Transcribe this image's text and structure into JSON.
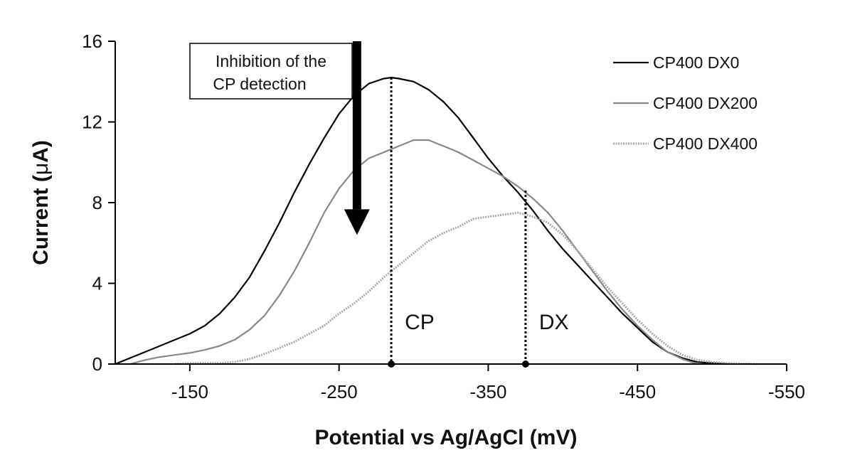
{
  "chart_data": {
    "type": "line",
    "title": "",
    "xlabel": "Potential vs Ag/AgCl (mV)",
    "ylabel_parts": [
      "Current (",
      "μ",
      "A)"
    ],
    "xlim": [
      -100,
      -550
    ],
    "ylim": [
      0,
      16
    ],
    "x_ticks": [
      -150,
      -250,
      -350,
      -450,
      -550
    ],
    "x_tick_labels": [
      "-150",
      "-250",
      "-350",
      "-450",
      "-550"
    ],
    "y_ticks": [
      0,
      4,
      8,
      12,
      16
    ],
    "y_tick_labels": [
      "0",
      "4",
      "8",
      "12",
      "16"
    ],
    "grid": false,
    "legend_position": "top-right",
    "series": [
      {
        "name": "CP400 DX0",
        "color": "#000000",
        "style": "solid",
        "x": [
          -100,
          -110,
          -120,
          -130,
          -140,
          -150,
          -160,
          -170,
          -180,
          -190,
          -200,
          -210,
          -220,
          -230,
          -240,
          -250,
          -260,
          -270,
          -280,
          -285,
          -290,
          -300,
          -310,
          -320,
          -330,
          -340,
          -350,
          -360,
          -370,
          -380,
          -390,
          -400,
          -410,
          -420,
          -430,
          -440,
          -450,
          -460,
          -470,
          -480,
          -490,
          -500,
          -510
        ],
        "y": [
          0.0,
          0.3,
          0.6,
          0.9,
          1.2,
          1.5,
          1.9,
          2.5,
          3.3,
          4.3,
          5.6,
          7.0,
          8.5,
          9.9,
          11.2,
          12.4,
          13.3,
          13.9,
          14.15,
          14.2,
          14.15,
          14.0,
          13.6,
          13.0,
          12.2,
          11.2,
          10.2,
          9.3,
          8.5,
          7.6,
          6.6,
          5.7,
          4.9,
          4.1,
          3.3,
          2.5,
          1.8,
          1.1,
          0.6,
          0.3,
          0.1,
          0.05,
          0.0
        ]
      },
      {
        "name": "CP400 DX200",
        "color": "#888888",
        "style": "solid",
        "x": [
          -110,
          -120,
          -130,
          -140,
          -150,
          -160,
          -170,
          -180,
          -190,
          -200,
          -210,
          -220,
          -230,
          -240,
          -250,
          -260,
          -270,
          -280,
          -290,
          -300,
          -310,
          -320,
          -330,
          -340,
          -350,
          -360,
          -370,
          -380,
          -390,
          -400,
          -410,
          -420,
          -430,
          -440,
          -450,
          -460,
          -470,
          -480,
          -490
        ],
        "y": [
          0.0,
          0.2,
          0.35,
          0.45,
          0.55,
          0.7,
          0.9,
          1.2,
          1.7,
          2.4,
          3.4,
          4.6,
          6.0,
          7.5,
          8.7,
          9.6,
          10.2,
          10.5,
          10.8,
          11.1,
          11.1,
          10.8,
          10.5,
          10.1,
          9.7,
          9.3,
          8.8,
          8.2,
          7.5,
          6.6,
          5.6,
          4.6,
          3.6,
          2.7,
          1.9,
          1.2,
          0.6,
          0.25,
          0.0
        ]
      },
      {
        "name": "CP400 DX400",
        "color": "#aaaaaa",
        "style": "dotted",
        "x": [
          -140,
          -150,
          -160,
          -170,
          -180,
          -190,
          -200,
          -210,
          -220,
          -230,
          -240,
          -250,
          -260,
          -270,
          -280,
          -290,
          -300,
          -310,
          -320,
          -330,
          -340,
          -350,
          -360,
          -370,
          -380,
          -390,
          -400,
          -410,
          -420,
          -430,
          -440,
          -450,
          -460,
          -470,
          -480,
          -490,
          -500,
          -510,
          -520,
          -530
        ],
        "y": [
          0.0,
          0.05,
          0.05,
          0.05,
          0.1,
          0.25,
          0.5,
          0.8,
          1.1,
          1.5,
          1.9,
          2.5,
          3.0,
          3.6,
          4.3,
          4.9,
          5.5,
          6.1,
          6.5,
          6.8,
          7.2,
          7.3,
          7.4,
          7.5,
          7.3,
          7.0,
          6.4,
          5.6,
          4.7,
          3.8,
          3.0,
          2.2,
          1.5,
          0.9,
          0.45,
          0.2,
          0.1,
          0.05,
          0.02,
          0.0
        ]
      }
    ],
    "markers": [
      {
        "label": "CP",
        "x": -285,
        "y_top": 14.2
      },
      {
        "label": "DX",
        "x": -375,
        "y_top": 8.6
      }
    ],
    "annotation": {
      "lines": [
        "Inhibition of the",
        "CP detection"
      ],
      "arrow_x": -262,
      "arrow_y_from": 16,
      "arrow_y_to": 6.4
    }
  }
}
